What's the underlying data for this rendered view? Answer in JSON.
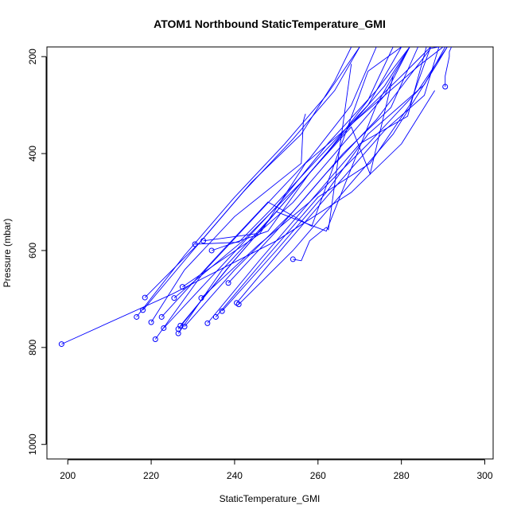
{
  "chart_data": {
    "type": "scatter",
    "title": "ATOM1 Northbound StaticTemperature_GMI",
    "xlabel": "StaticTemperature_GMI",
    "ylabel": "Pressure (mbar)",
    "xlim": [
      195,
      302
    ],
    "ylim": [
      1030,
      180
    ],
    "y_reversed": true,
    "x_ticks": [
      "200",
      "220",
      "240",
      "260",
      "280",
      "300"
    ],
    "y_ticks": [
      "200",
      "400",
      "600",
      "800",
      "1000"
    ],
    "grid": false,
    "legend": "none",
    "series_color": "#0000ff",
    "marker": "open-circle",
    "series": [
      {
        "x": [
          198.5,
          225,
          250,
          268,
          280,
          288
        ],
        "y": [
          793,
          690,
          580,
          480,
          380,
          270
        ]
      },
      {
        "x": [
          216.5,
          228,
          240,
          252,
          262,
          270
        ],
        "y": [
          737,
          610,
          490,
          380,
          280,
          180
        ]
      },
      {
        "x": [
          218.0,
          230,
          242,
          254,
          264,
          270
        ],
        "y": [
          723,
          600,
          480,
          370,
          270,
          180
        ]
      },
      {
        "x": [
          218.5,
          232,
          244,
          256,
          264,
          268
        ],
        "y": [
          697,
          580,
          460,
          360,
          250,
          180
        ]
      },
      {
        "x": [
          221.0,
          233,
          246,
          258,
          268,
          274
        ],
        "y": [
          783,
          640,
          520,
          410,
          300,
          180
        ]
      },
      {
        "x": [
          220.0,
          228,
          240,
          256,
          256.5,
          257
        ],
        "y": [
          748,
          640,
          530,
          420,
          333,
          318
        ]
      },
      {
        "x": [
          226.5,
          237,
          250,
          262,
          272,
          278
        ],
        "y": [
          771,
          640,
          520,
          400,
          290,
          180
        ]
      },
      {
        "x": [
          227.0,
          240,
          252,
          264,
          276,
          282
        ],
        "y": [
          755,
          620,
          500,
          380,
          260,
          180
        ]
      },
      {
        "x": [
          223.0,
          236,
          250,
          262.5,
          274,
          282
        ],
        "y": [
          760,
          640,
          510,
          378,
          270,
          180
        ]
      },
      {
        "x": [
          228.0,
          240,
          254,
          266,
          277.5,
          284
        ],
        "y": [
          757,
          640,
          520,
          400,
          305,
          180
        ]
      },
      {
        "x": [
          233.5,
          246,
          258,
          270,
          281.5,
          286
        ],
        "y": [
          750,
          620,
          500,
          380,
          323,
          180
        ]
      },
      {
        "x": [
          235.5,
          248,
          260,
          272.5,
          282,
          287
        ],
        "y": [
          737,
          610,
          490,
          420,
          300,
          180
        ]
      },
      {
        "x": [
          237.0,
          250,
          262,
          272,
          285.5,
          290.5
        ],
        "y": [
          725,
          600,
          480,
          360,
          258,
          180
        ]
      },
      {
        "x": [
          240.5,
          252,
          264,
          276,
          285.5,
          289
        ],
        "y": [
          708,
          590,
          470,
          352,
          280,
          180
        ]
      },
      {
        "x": [
          241.0,
          254,
          266,
          278,
          288.5,
          291
        ],
        "y": [
          711,
          600,
          480,
          360,
          216,
          180
        ]
      },
      {
        "x": [
          238.5,
          250,
          262,
          274,
          287,
          289
        ],
        "y": [
          667,
          560,
          440,
          330,
          183,
          180
        ]
      },
      {
        "x": [
          225.5,
          242,
          256.5,
          268,
          280,
          287
        ],
        "y": [
          698,
          580,
          455,
          340,
          240,
          180
        ]
      },
      {
        "x": [
          227.5,
          246,
          257,
          272,
          284,
          290
        ],
        "y": [
          675,
          566,
          420,
          310,
          220,
          180
        ]
      },
      {
        "x": [
          232.0,
          245.5,
          258,
          272,
          284,
          291
        ],
        "y": [
          698,
          590,
          500,
          380,
          270,
          180
        ]
      },
      {
        "x": [
          230.5,
          241,
          248.5,
          260,
          272,
          280
        ],
        "y": [
          587,
          583,
          517,
          410,
          300,
          180
        ]
      },
      {
        "x": [
          232.5,
          245.5,
          254,
          266,
          276,
          282
        ],
        "y": [
          580,
          565,
          501,
          380,
          280,
          180
        ]
      },
      {
        "x": [
          234.5,
          248,
          258,
          268,
          272.5,
          278
        ],
        "y": [
          600,
          560,
          440,
          345,
          442,
          240
        ]
      },
      {
        "x": [
          254,
          256,
          258,
          262,
          262.5,
          268
        ],
        "y": [
          618,
          621,
          580,
          552,
          557,
          215
        ]
      },
      {
        "x": [
          222.5,
          236,
          248,
          258.5,
          272,
          280
        ],
        "y": [
          737,
          610,
          500,
          550,
          230,
          180
        ]
      },
      {
        "x": [
          226.5,
          238,
          250,
          262,
          274,
          282
        ],
        "y": [
          762,
          640,
          520,
          560,
          300,
          180
        ]
      },
      {
        "x": [
          290.5,
          290.5,
          291,
          291.5,
          291.5,
          292
        ],
        "y": [
          262,
          240,
          220,
          200,
          190,
          180
        ]
      }
    ]
  }
}
